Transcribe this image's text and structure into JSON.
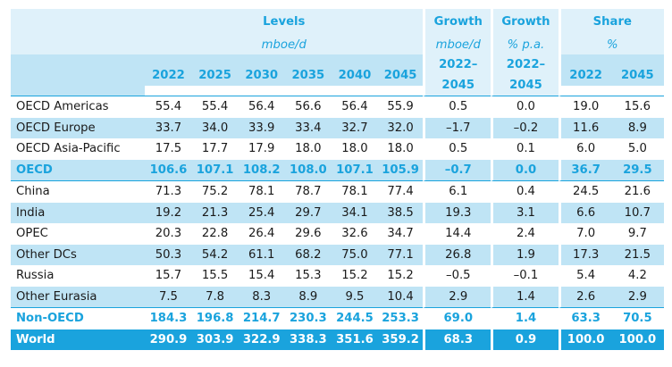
{
  "header": {
    "levels": "Levels",
    "levels_unit": "mboe/d",
    "growth1": "Growth",
    "growth1_unit": "mboe/d",
    "growth1_period_a": "2022–",
    "growth1_period_b": "2045",
    "growth2": "Growth",
    "growth2_unit": "% p.a.",
    "growth2_period_a": "2022–",
    "growth2_period_b": "2045",
    "share": "Share",
    "share_unit": "%",
    "years": [
      "2022",
      "2025",
      "2030",
      "2035",
      "2040",
      "2045"
    ],
    "share_years": [
      "2022",
      "2045"
    ]
  },
  "rows": [
    {
      "region": "OECD Americas",
      "values": [
        "55.4",
        "55.4",
        "56.4",
        "56.6",
        "56.4",
        "55.9"
      ],
      "growth": "0.5",
      "pa": "0.0",
      "s1": "19.0",
      "s2": "15.6"
    },
    {
      "region": "OECD Europe",
      "values": [
        "33.7",
        "34.0",
        "33.9",
        "33.4",
        "32.7",
        "32.0"
      ],
      "growth": "–1.7",
      "pa": "–0.2",
      "s1": "11.6",
      "s2": "8.9"
    },
    {
      "region": "OECD Asia-Pacific",
      "values": [
        "17.5",
        "17.7",
        "17.9",
        "18.0",
        "18.0",
        "18.0"
      ],
      "growth": "0.5",
      "pa": "0.1",
      "s1": "6.0",
      "s2": "5.0"
    },
    {
      "region": "OECD",
      "values": [
        "106.6",
        "107.1",
        "108.2",
        "108.0",
        "107.1",
        "105.9"
      ],
      "growth": "–0.7",
      "pa": "0.0",
      "s1": "36.7",
      "s2": "29.5"
    },
    {
      "region": "China",
      "values": [
        "71.3",
        "75.2",
        "78.1",
        "78.7",
        "78.1",
        "77.4"
      ],
      "growth": "6.1",
      "pa": "0.4",
      "s1": "24.5",
      "s2": "21.6"
    },
    {
      "region": "India",
      "values": [
        "19.2",
        "21.3",
        "25.4",
        "29.7",
        "34.1",
        "38.5"
      ],
      "growth": "19.3",
      "pa": "3.1",
      "s1": "6.6",
      "s2": "10.7"
    },
    {
      "region": "OPEC",
      "values": [
        "20.3",
        "22.8",
        "26.4",
        "29.6",
        "32.6",
        "34.7"
      ],
      "growth": "14.4",
      "pa": "2.4",
      "s1": "7.0",
      "s2": "9.7"
    },
    {
      "region": "Other DCs",
      "values": [
        "50.3",
        "54.2",
        "61.1",
        "68.2",
        "75.0",
        "77.1"
      ],
      "growth": "26.8",
      "pa": "1.9",
      "s1": "17.3",
      "s2": "21.5"
    },
    {
      "region": "Russia",
      "values": [
        "15.7",
        "15.5",
        "15.4",
        "15.3",
        "15.2",
        "15.2"
      ],
      "growth": "–0.5",
      "pa": "–0.1",
      "s1": "5.4",
      "s2": "4.2"
    },
    {
      "region": "Other Eurasia",
      "values": [
        "7.5",
        "7.8",
        "8.3",
        "8.9",
        "9.5",
        "10.4"
      ],
      "growth": "2.9",
      "pa": "1.4",
      "s1": "2.6",
      "s2": "2.9"
    },
    {
      "region": "Non-OECD",
      "values": [
        "184.3",
        "196.8",
        "214.7",
        "230.3",
        "244.5",
        "253.3"
      ],
      "growth": "69.0",
      "pa": "1.4",
      "s1": "63.3",
      "s2": "70.5"
    },
    {
      "region": "World",
      "values": [
        "290.9",
        "303.9",
        "322.9",
        "338.3",
        "351.6",
        "359.2"
      ],
      "growth": "68.3",
      "pa": "0.9",
      "s1": "100.0",
      "s2": "100.0"
    }
  ],
  "colors": {
    "accent": "#1aa3dd",
    "band_light": "#dff1fa",
    "band_mid": "#bfe4f5"
  }
}
